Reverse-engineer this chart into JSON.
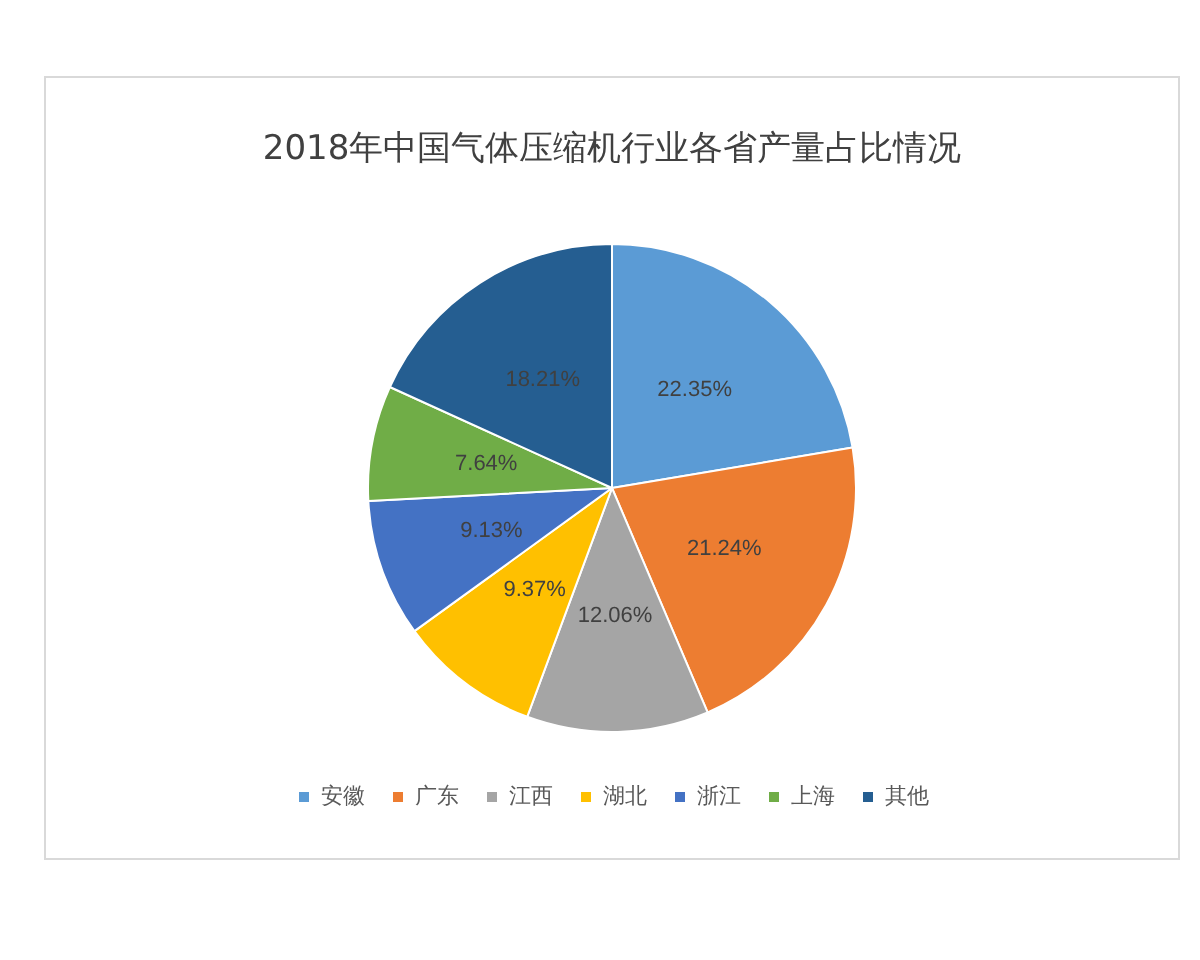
{
  "chart_data": {
    "type": "pie",
    "title": "2018年中国气体压缩机行业各省产量占比情况",
    "categories": [
      "安徽",
      "广东",
      "江西",
      "湖北",
      "浙江",
      "上海",
      "其他"
    ],
    "values": [
      22.35,
      21.24,
      12.06,
      9.37,
      9.13,
      7.64,
      18.21
    ],
    "value_labels": [
      "22.35%",
      "21.24%",
      "12.06%",
      "9.37%",
      "9.13%",
      "7.64%",
      "18.21%"
    ],
    "colors": [
      "#5b9bd5",
      "#ed7d31",
      "#a5a5a5",
      "#ffc000",
      "#4472c4",
      "#70ad47",
      "#255e91"
    ],
    "legend": "bottom"
  }
}
